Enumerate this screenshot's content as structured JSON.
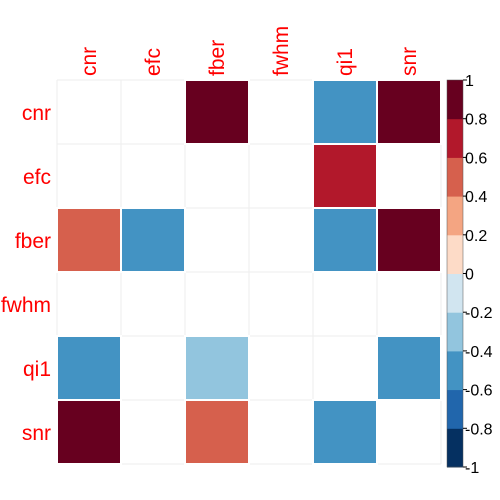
{
  "chart_data": {
    "type": "heatmap",
    "variables": [
      "cnr",
      "efc",
      "fber",
      "fwhm",
      "qi1",
      "snr"
    ],
    "matrix": [
      [
        null,
        null,
        1.0,
        null,
        -0.5,
        1.0
      ],
      [
        null,
        null,
        null,
        null,
        0.7,
        null
      ],
      [
        0.5,
        -0.5,
        null,
        null,
        -0.5,
        1.0
      ],
      [
        null,
        null,
        null,
        null,
        null,
        null
      ],
      [
        -0.5,
        null,
        -0.3,
        null,
        null,
        -0.5
      ],
      [
        1.0,
        null,
        0.5,
        null,
        -0.5,
        null
      ]
    ],
    "colorbar": {
      "range": [
        -1,
        1
      ],
      "tick_labels": [
        "1",
        "0.8",
        "0.6",
        "0.4",
        "0.2",
        "0",
        "-0.2",
        "-0.4",
        "-0.6",
        "-0.8",
        "-1"
      ],
      "bin_colors_low_to_high": [
        "#053061",
        "#2166ac",
        "#4393c3",
        "#92c5de",
        "#d1e5f0",
        "#fddbc7",
        "#f4a582",
        "#d6604d",
        "#b2182b",
        "#67001f"
      ]
    },
    "label_color": "#ff0000",
    "colors": {
      "grid": "#eeeeee",
      "cell_border": "#ffffff",
      "tick_text": "#000000"
    }
  }
}
